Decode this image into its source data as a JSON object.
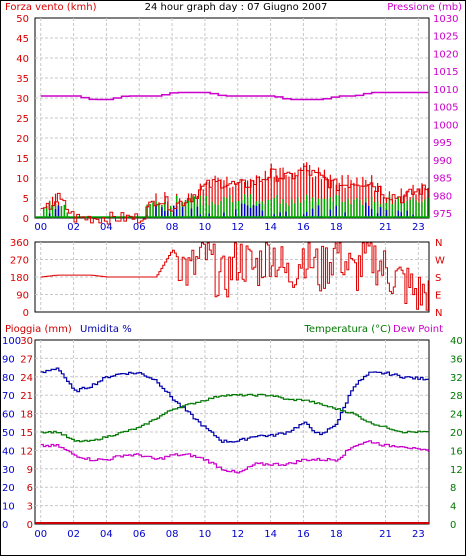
{
  "title": "24 hour graph day : 07 Giugno 2007",
  "colors": {
    "wind": "#dd0000",
    "pressure": "#cc00cc",
    "rain": "#cc0000",
    "humidity": "#0000aa",
    "temperature": "#007700",
    "dew_point": "#cc00cc",
    "gust_red": "#ee0000",
    "gust_green": "#00aa00",
    "gust_blue": "#0000cc",
    "axis_blue": "#0000cc"
  },
  "panels": {
    "wind_pressure": {
      "left_label": "Forza vento (kmh)",
      "right_label": "Pressione (mb)",
      "left_ticks": [
        "50",
        "45",
        "40",
        "35",
        "30",
        "25",
        "20",
        "15",
        "10",
        "5",
        "0"
      ],
      "right_ticks": [
        "1030",
        "1025",
        "1020",
        "1015",
        "1010",
        "1005",
        "1000",
        "995",
        "990",
        "985",
        "980",
        "975"
      ]
    },
    "wind_direction": {
      "left_ticks": [
        "360",
        "270",
        "180",
        "90",
        "0"
      ],
      "right_ticks": [
        "N",
        "W",
        "S",
        "E",
        "N"
      ]
    },
    "climate": {
      "rain_label": "Pioggia (mm)",
      "humidity_label": "Umidita %",
      "temp_label": "Temperatura (°C)",
      "dew_label": "Dew Point",
      "left_ticks_humidity": [
        "100",
        "90",
        "80",
        "70",
        "60",
        "50",
        "40",
        "30",
        "20",
        "10",
        "0"
      ],
      "left_ticks_rain": [
        "30",
        "27",
        "24",
        "21",
        "18",
        "15",
        "12",
        "9",
        "6",
        "3",
        "0"
      ],
      "right_ticks": [
        "40",
        "36",
        "32",
        "28",
        "24",
        "20",
        "16",
        "12",
        "8",
        "4",
        "0"
      ]
    }
  },
  "x_ticks": [
    "00",
    "02",
    "04",
    "06",
    "08",
    "10",
    "12",
    "14",
    "16",
    "18",
    "21",
    "23"
  ],
  "chart_data": [
    {
      "type": "line",
      "title": "24 hour graph day : 07 Giugno 2007",
      "xlabel": "",
      "x": [
        0,
        1,
        2,
        3,
        4,
        5,
        6,
        7,
        8,
        9,
        10,
        11,
        12,
        13,
        14,
        15,
        16,
        17,
        18,
        19,
        20,
        21,
        22,
        23
      ],
      "series": [
        {
          "name": "Pressione (mb)",
          "axis": "right",
          "ylim": [
            975,
            1030
          ],
          "values": [
            1008,
            1008,
            1008,
            1007,
            1007,
            1008,
            1008,
            1008,
            1009,
            1009,
            1009,
            1008,
            1008,
            1008,
            1008,
            1007,
            1007,
            1007,
            1008,
            1008,
            1009,
            1009,
            1009,
            1009
          ]
        },
        {
          "name": "Forza vento (kmh)",
          "axis": "left",
          "ylim": [
            0,
            50
          ],
          "values": [
            1,
            5,
            0,
            0,
            0,
            0,
            0,
            5,
            3,
            5,
            8,
            9,
            8,
            9,
            11,
            10,
            12,
            10,
            8,
            9,
            9,
            6,
            5,
            7
          ]
        }
      ],
      "grid": true
    },
    {
      "type": "line",
      "xlabel": "",
      "x": [
        0,
        1,
        2,
        3,
        4,
        5,
        6,
        7,
        8,
        9,
        10,
        11,
        12,
        13,
        14,
        15,
        16,
        17,
        18,
        19,
        20,
        21,
        22,
        23
      ],
      "series": [
        {
          "name": "direction",
          "ylim": [
            0,
            360
          ],
          "values": [
            180,
            190,
            190,
            190,
            180,
            180,
            180,
            180,
            320,
            200,
            300,
            150,
            280,
            220,
            320,
            180,
            310,
            200,
            330,
            190,
            300,
            210,
            150,
            90
          ]
        }
      ],
      "grid": true
    },
    {
      "type": "line",
      "xlabel": "",
      "x": [
        0,
        1,
        2,
        3,
        4,
        5,
        6,
        7,
        8,
        9,
        10,
        11,
        12,
        13,
        14,
        15,
        16,
        17,
        18,
        19,
        20,
        21,
        22,
        23
      ],
      "series": [
        {
          "name": "Umidita %",
          "axis": "left",
          "ylim": [
            0,
            100
          ],
          "values": [
            82,
            85,
            72,
            75,
            80,
            82,
            82,
            78,
            68,
            60,
            52,
            45,
            45,
            48,
            48,
            50,
            55,
            48,
            55,
            75,
            82,
            82,
            80,
            79
          ]
        },
        {
          "name": "Temperatura (°C)",
          "axis": "right",
          "ylim": [
            0,
            40
          ],
          "values": [
            20,
            20,
            18,
            18,
            19,
            20,
            21,
            23,
            25,
            26,
            27,
            28,
            28,
            28,
            28,
            27,
            27,
            26,
            25,
            24,
            22,
            21,
            20,
            20
          ]
        },
        {
          "name": "Dew Point",
          "axis": "right",
          "ylim": [
            0,
            40
          ],
          "values": [
            17,
            17,
            15,
            14,
            14,
            15,
            15,
            14,
            15,
            15,
            14,
            12,
            11,
            13,
            13,
            13,
            14,
            14,
            14,
            17,
            18,
            17,
            17,
            16
          ]
        },
        {
          "name": "Pioggia (mm)",
          "axis": "left2",
          "ylim": [
            0,
            30
          ],
          "values": [
            0,
            0,
            0,
            0,
            0,
            0,
            0,
            0,
            0,
            0,
            0,
            0,
            0,
            0,
            0,
            0,
            0,
            0,
            0,
            0,
            0,
            0,
            0,
            0
          ]
        }
      ],
      "grid": true
    }
  ]
}
